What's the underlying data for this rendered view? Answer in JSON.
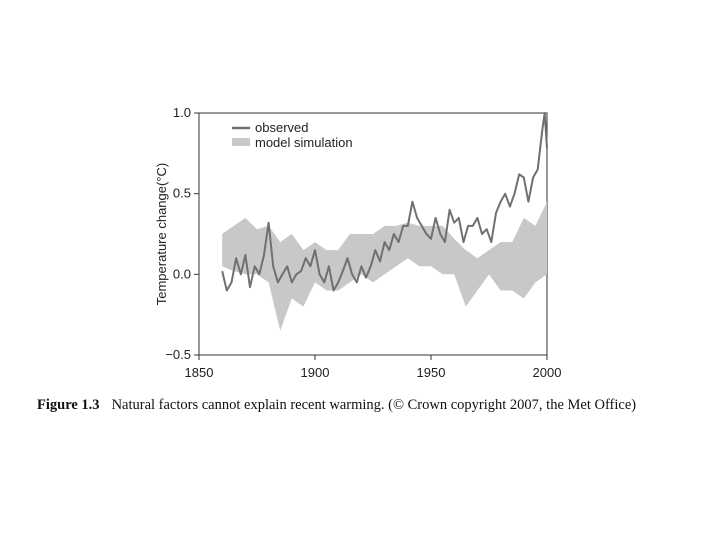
{
  "chart_data": {
    "type": "line",
    "title": "",
    "xlabel": "",
    "ylabel": "Temperature change(°C)",
    "xlim": [
      1850,
      2000
    ],
    "ylim": [
      -0.5,
      1.0
    ],
    "x_ticks": [
      "1850",
      "1900",
      "1950",
      "2000"
    ],
    "y_ticks": [
      "−0.5",
      "0.0",
      "0.5",
      "1.0"
    ],
    "legend": [
      "observed",
      "model simulation"
    ],
    "legend_position": "top-left",
    "series": [
      {
        "name": "observed",
        "color": "#707070",
        "x": [
          1860,
          1862,
          1864,
          1866,
          1868,
          1870,
          1872,
          1874,
          1876,
          1878,
          1880,
          1882,
          1884,
          1886,
          1888,
          1890,
          1892,
          1894,
          1896,
          1898,
          1900,
          1902,
          1904,
          1906,
          1908,
          1910,
          1912,
          1914,
          1916,
          1918,
          1920,
          1922,
          1924,
          1926,
          1928,
          1930,
          1932,
          1934,
          1936,
          1938,
          1940,
          1942,
          1944,
          1946,
          1948,
          1950,
          1952,
          1954,
          1956,
          1958,
          1960,
          1962,
          1964,
          1966,
          1968,
          1970,
          1972,
          1974,
          1976,
          1978,
          1980,
          1982,
          1984,
          1986,
          1988,
          1990,
          1992,
          1994,
          1996,
          1998,
          1999,
          2000
        ],
        "values": [
          0.02,
          -0.1,
          -0.05,
          0.1,
          0.0,
          0.12,
          -0.08,
          0.05,
          0.0,
          0.12,
          0.32,
          0.05,
          -0.05,
          0.0,
          0.05,
          -0.05,
          0.0,
          0.02,
          0.1,
          0.05,
          0.15,
          0.0,
          -0.05,
          0.05,
          -0.1,
          -0.05,
          0.02,
          0.1,
          0.0,
          -0.05,
          0.05,
          -0.02,
          0.05,
          0.15,
          0.08,
          0.2,
          0.15,
          0.25,
          0.2,
          0.3,
          0.3,
          0.45,
          0.35,
          0.3,
          0.25,
          0.22,
          0.35,
          0.25,
          0.2,
          0.4,
          0.32,
          0.35,
          0.2,
          0.3,
          0.3,
          0.35,
          0.25,
          0.28,
          0.2,
          0.38,
          0.45,
          0.5,
          0.42,
          0.5,
          0.62,
          0.6,
          0.45,
          0.6,
          0.65,
          0.9,
          1.0,
          0.78
        ]
      },
      {
        "name": "model simulation",
        "color": "#c8c8c8",
        "x": [
          1860,
          1865,
          1870,
          1875,
          1880,
          1885,
          1890,
          1895,
          1900,
          1905,
          1910,
          1915,
          1920,
          1925,
          1930,
          1935,
          1940,
          1945,
          1950,
          1955,
          1960,
          1965,
          1970,
          1975,
          1980,
          1985,
          1990,
          1995,
          2000
        ],
        "lower": [
          0.05,
          0.02,
          0.0,
          0.0,
          -0.05,
          -0.35,
          -0.15,
          -0.2,
          -0.05,
          -0.1,
          -0.1,
          -0.05,
          0.0,
          -0.05,
          0.0,
          0.05,
          0.1,
          0.05,
          0.05,
          0.0,
          0.0,
          -0.2,
          -0.1,
          0.0,
          -0.1,
          -0.1,
          -0.15,
          -0.05,
          0.0
        ],
        "upper": [
          0.25,
          0.3,
          0.35,
          0.28,
          0.3,
          0.2,
          0.25,
          0.15,
          0.2,
          0.15,
          0.15,
          0.25,
          0.25,
          0.25,
          0.3,
          0.3,
          0.32,
          0.3,
          0.3,
          0.3,
          0.22,
          0.15,
          0.1,
          0.15,
          0.2,
          0.2,
          0.35,
          0.3,
          0.45
        ]
      }
    ]
  },
  "caption": {
    "figure_number": "Figure 1.3",
    "text": "Natural factors cannot explain recent warming. (© Crown copyright 2007, the Met Office)"
  }
}
